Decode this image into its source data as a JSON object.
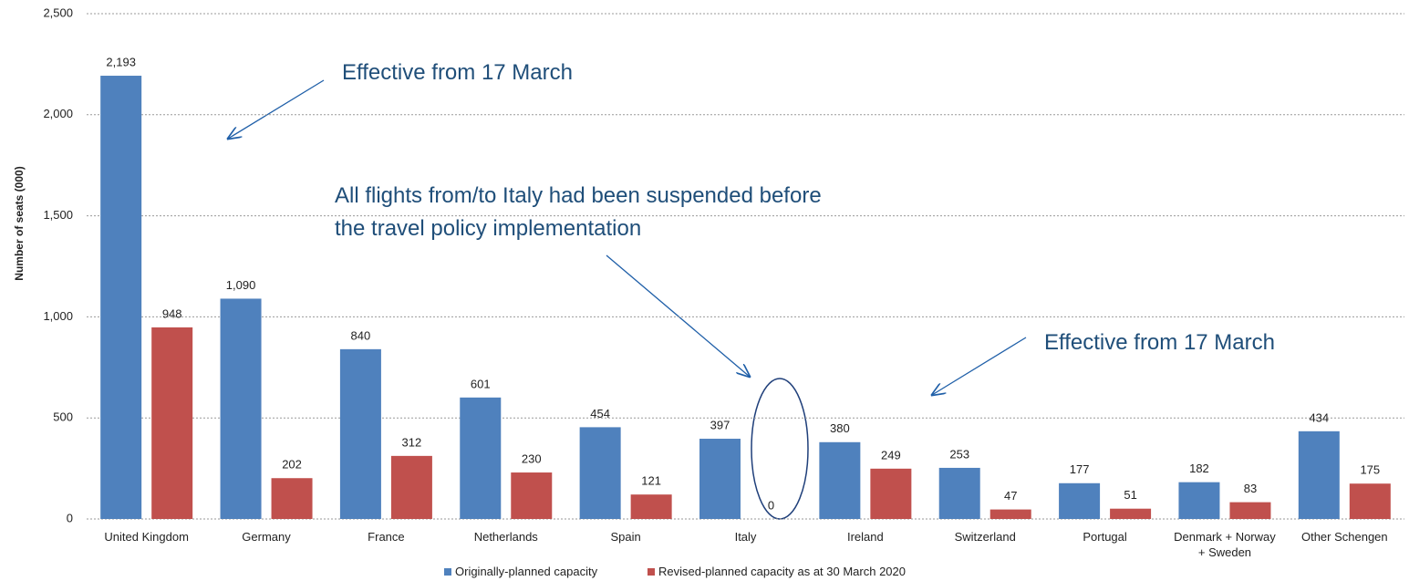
{
  "chart_data": {
    "type": "bar",
    "y_label": "Number of seats (000)",
    "categories": [
      "United Kingdom",
      "Germany",
      "France",
      "Netherlands",
      "Spain",
      "Italy",
      "Ireland",
      "Switzerland",
      "Portugal",
      "Denmark + Norway + Sweden",
      "Other Schengen"
    ],
    "series": [
      {
        "name": "Originally-planned capacity",
        "color": "#4f81bd",
        "values": [
          2193,
          1090,
          840,
          601,
          454,
          397,
          380,
          253,
          177,
          182,
          434
        ],
        "value_labels": [
          "2,193",
          "1,090",
          "840",
          "601",
          "454",
          "397",
          "380",
          "253",
          "177",
          "182",
          "434"
        ]
      },
      {
        "name": "Revised-planned capacity as at 30 March 2020",
        "color": "#c0504d",
        "values": [
          948,
          202,
          312,
          230,
          121,
          0,
          249,
          47,
          51,
          83,
          175
        ],
        "value_labels": [
          "948",
          "202",
          "312",
          "230",
          "121",
          "0",
          "249",
          "47",
          "51",
          "83",
          "175"
        ]
      }
    ],
    "ylim": [
      0,
      2500
    ],
    "yticks": [
      0,
      500,
      {
        "value": 1000,
        "label": "1,000"
      },
      {
        "value": 1500,
        "label": "1,500"
      },
      {
        "value": 2000,
        "label": "2,000"
      },
      {
        "value": 2500,
        "label": "2,500"
      }
    ],
    "grid": true,
    "legend": "bottom",
    "annotations": [
      {
        "text": "Effective from 17 March"
      },
      {
        "text": "All flights from/to Italy had been suspended before the travel policy implementation"
      },
      {
        "text": "Effective from 17 March"
      }
    ]
  }
}
